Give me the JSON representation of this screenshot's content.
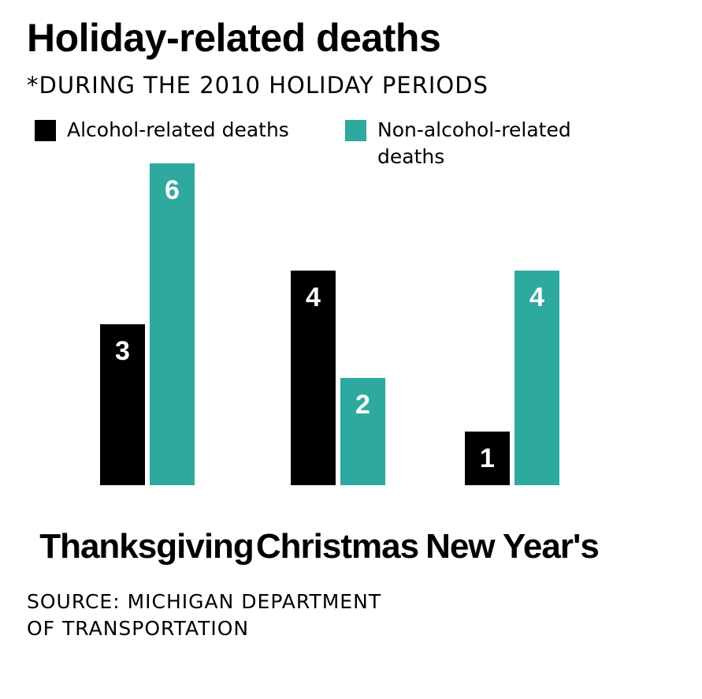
{
  "title": "Holiday-related deaths",
  "subtitle": "*DURING THE 2010 HOLIDAY PERIODS",
  "legend": [
    {
      "label": "Alcohol-related deaths",
      "color": "#000000"
    },
    {
      "label": "Non-alcohol-related deaths",
      "color": "#2ea9a0"
    }
  ],
  "source": [
    "SOURCE: MICHIGAN DEPARTMENT",
    "OF TRANSPORTATION"
  ],
  "chart_data": {
    "type": "bar",
    "categories": [
      "Thanksgiving",
      "Christmas",
      "New Year's"
    ],
    "series": [
      {
        "name": "Alcohol-related deaths",
        "color": "#000000",
        "values": [
          3,
          4,
          1
        ]
      },
      {
        "name": "Non-alcohol-related deaths",
        "color": "#2ea9a0",
        "values": [
          6,
          2,
          4
        ]
      }
    ],
    "ylim": [
      0,
      6
    ],
    "grid": false,
    "data_labels": true,
    "legend_position": "top"
  }
}
